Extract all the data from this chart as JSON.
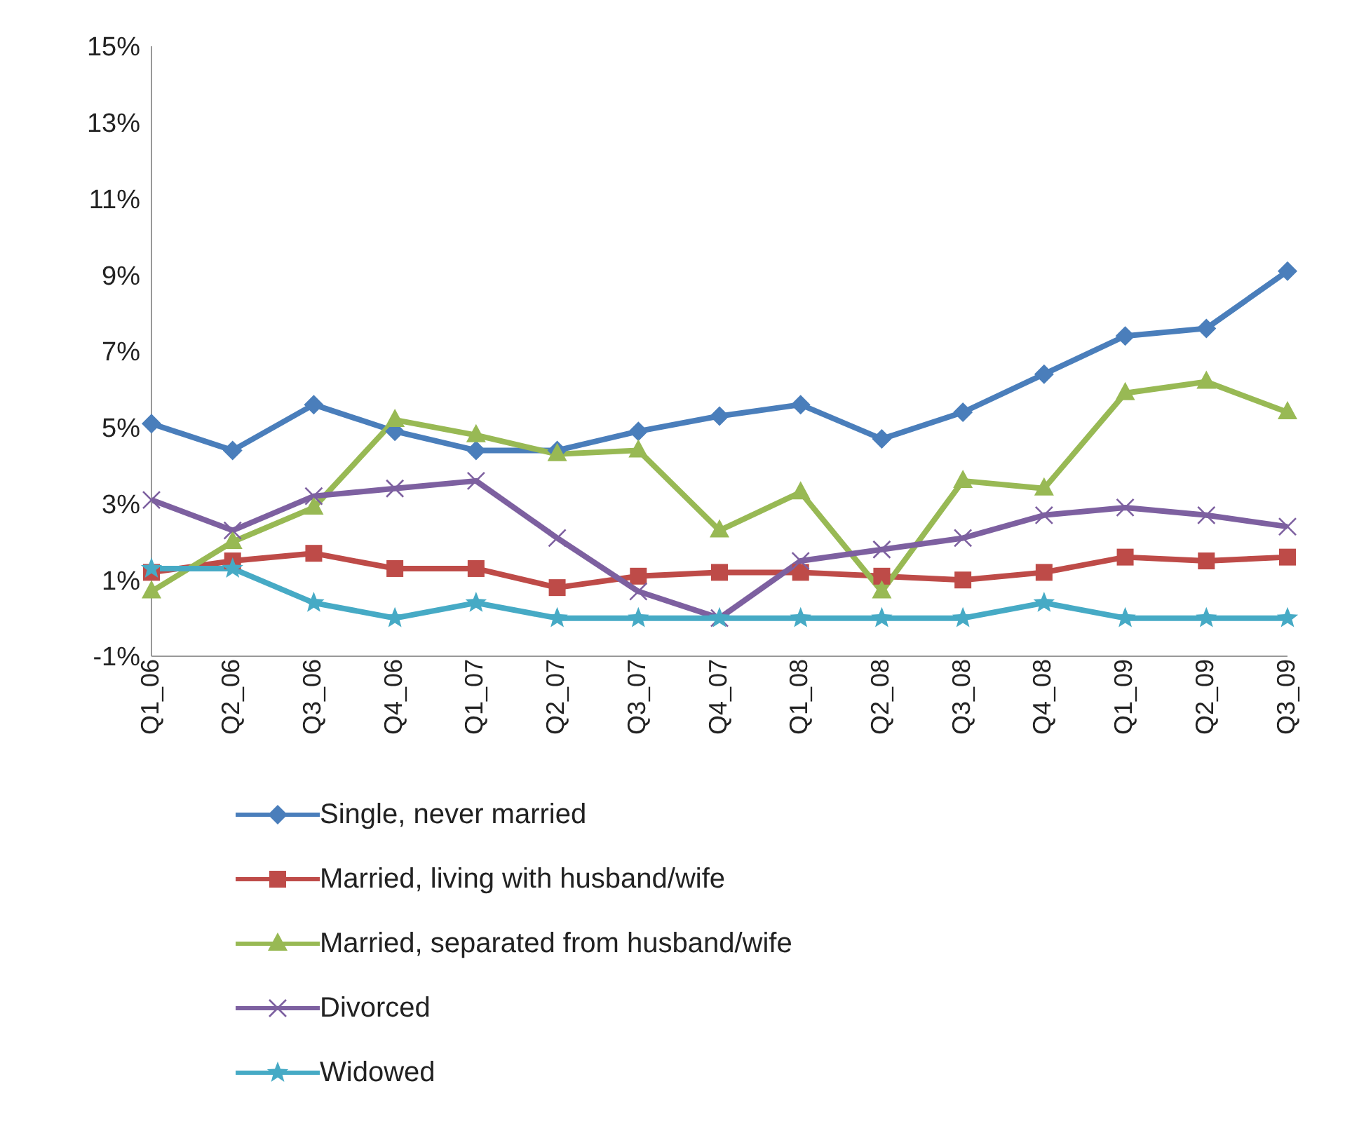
{
  "chart_data": {
    "type": "line",
    "categories": [
      "Q1_06",
      "Q2_06",
      "Q3_06",
      "Q4_06",
      "Q1_07",
      "Q2_07",
      "Q3_07",
      "Q4_07",
      "Q1_08",
      "Q2_08",
      "Q3_08",
      "Q4_08",
      "Q1_09",
      "Q2_09",
      "Q3_09"
    ],
    "series": [
      {
        "name": "Single, never married",
        "color": "#4a7ebb",
        "marker": "diamond",
        "values": [
          5.1,
          4.4,
          5.6,
          4.9,
          4.4,
          4.4,
          4.9,
          5.3,
          5.6,
          4.7,
          5.4,
          6.4,
          7.4,
          7.6,
          9.1
        ]
      },
      {
        "name": "Married, living with husband/wife",
        "color": "#be4b48",
        "marker": "square",
        "values": [
          1.2,
          1.5,
          1.7,
          1.3,
          1.3,
          0.8,
          1.1,
          1.2,
          1.2,
          1.1,
          1.0,
          1.2,
          1.6,
          1.5,
          1.6
        ]
      },
      {
        "name": "Married, separated from husband/wife",
        "color": "#98b954",
        "marker": "triangle",
        "values": [
          0.7,
          2.0,
          2.9,
          5.2,
          4.8,
          4.3,
          4.4,
          2.3,
          3.3,
          0.7,
          3.6,
          3.4,
          5.9,
          6.2,
          5.4
        ]
      },
      {
        "name": "Divorced",
        "color": "#7d60a0",
        "marker": "cross",
        "values": [
          3.1,
          2.3,
          3.2,
          3.4,
          3.6,
          2.1,
          0.7,
          0.0,
          1.5,
          1.8,
          2.1,
          2.7,
          2.9,
          2.7,
          2.4
        ]
      },
      {
        "name": "Widowed",
        "color": "#46aac5",
        "marker": "star",
        "values": [
          1.3,
          1.3,
          0.4,
          0.0,
          0.4,
          0.0,
          0.0,
          0.0,
          0.0,
          0.0,
          0.0,
          0.4,
          0.0,
          0.0,
          0.0
        ]
      }
    ],
    "ylim": [
      -1,
      15
    ],
    "yticks": [
      {
        "value": -1,
        "label": "-1%"
      },
      {
        "value": 1,
        "label": "1%"
      },
      {
        "value": 3,
        "label": "3%"
      },
      {
        "value": 5,
        "label": "5%"
      },
      {
        "value": 7,
        "label": "7%"
      },
      {
        "value": 9,
        "label": "9%"
      },
      {
        "value": 11,
        "label": "11%"
      },
      {
        "value": 13,
        "label": "13%"
      },
      {
        "value": 15,
        "label": "15%"
      }
    ],
    "grid": false,
    "legend": "bottom",
    "line_style": "solid"
  }
}
